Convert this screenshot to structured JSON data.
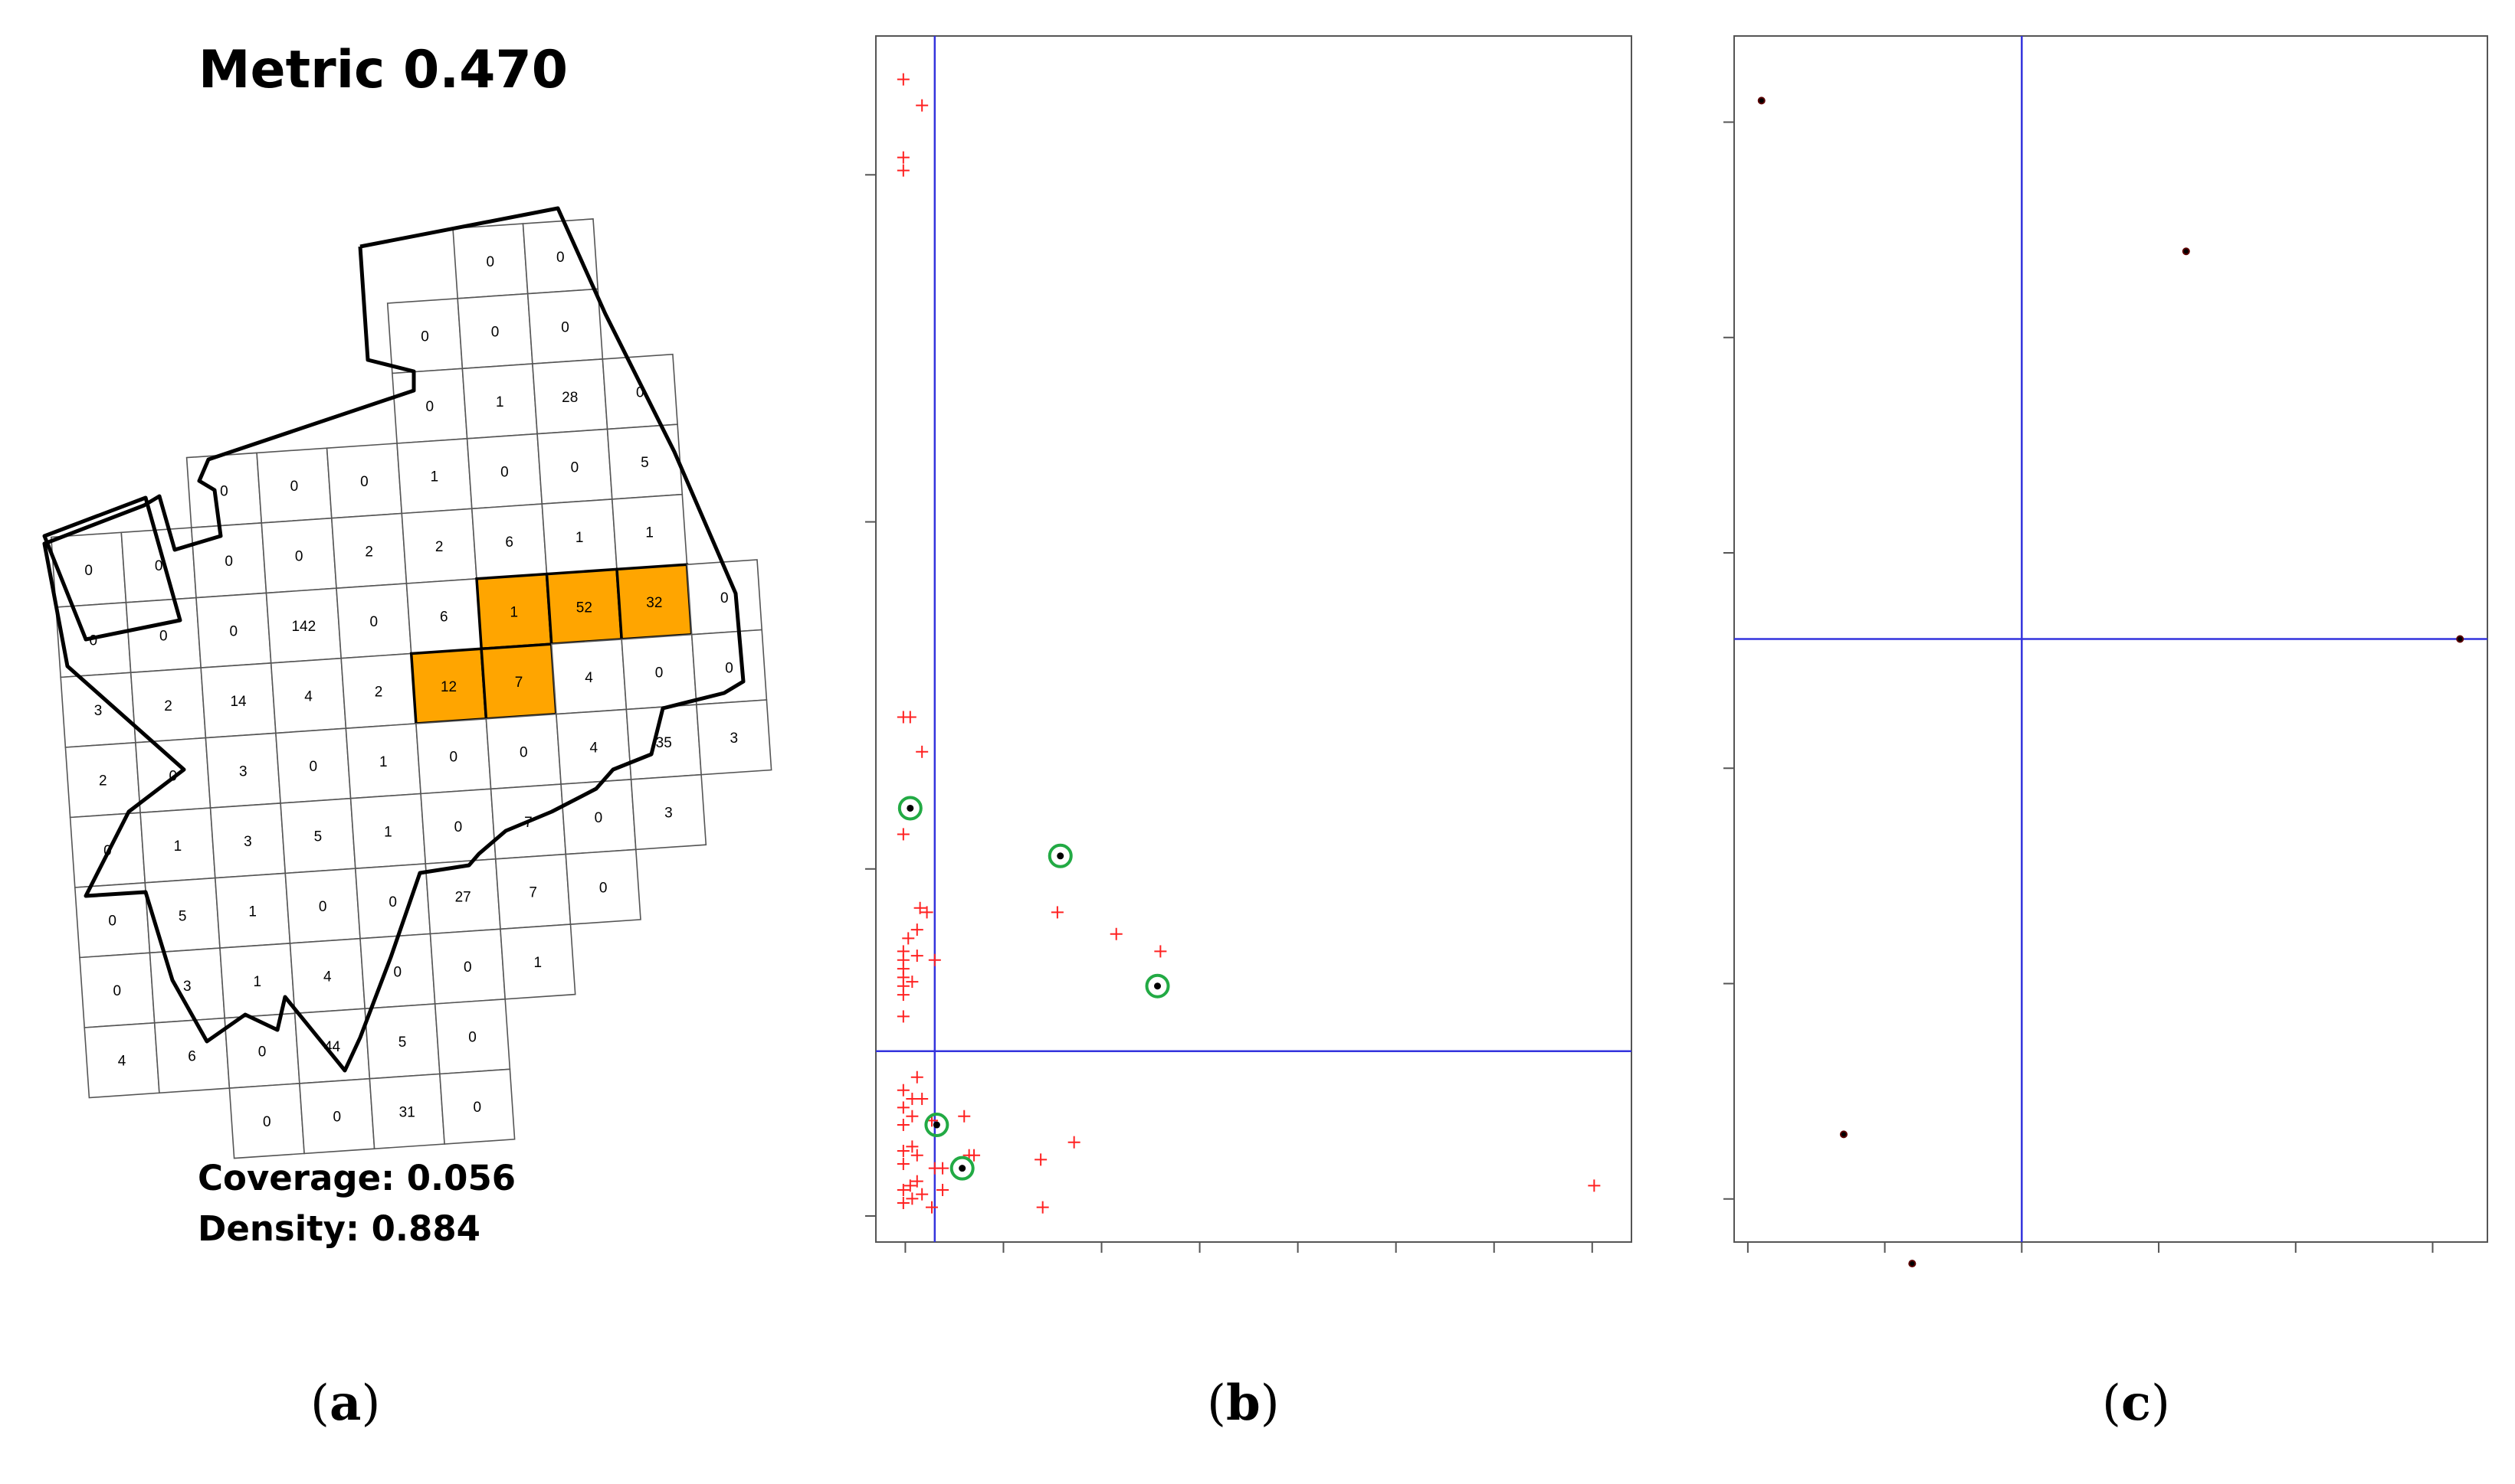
{
  "panel_a": {
    "title": "Metric 0.470",
    "coverage_text": "Coverage: 0.056",
    "density_text": "Density: 0.884",
    "label_open": "(",
    "label_letter": "a",
    "label_close": ")",
    "highlight_color": "#FFA500",
    "grid_rows": [
      {
        "row": 0,
        "start_col": 6,
        "values": [
          "0",
          "0"
        ]
      },
      {
        "row": 1,
        "start_col": 5,
        "values": [
          "0",
          "0",
          "0"
        ]
      },
      {
        "row": 2,
        "start_col": 5,
        "values": [
          "0",
          "1",
          "28",
          "0"
        ]
      },
      {
        "row": 3,
        "start_col": 2,
        "values": [
          "0",
          "0",
          "0",
          "1",
          "0",
          "0",
          "5"
        ]
      },
      {
        "row": 4,
        "start_col": 0,
        "values": [
          "0",
          "0",
          "0",
          "0",
          "2",
          "2",
          "6",
          "1",
          "1"
        ]
      },
      {
        "row": 5,
        "start_col": 0,
        "values": [
          "0",
          "0",
          "0",
          "142",
          "0",
          "6",
          "1",
          "52",
          "32",
          "0"
        ]
      },
      {
        "row": 6,
        "start_col": 0,
        "values": [
          "3",
          "2",
          "14",
          "4",
          "2",
          "12",
          "7",
          "4",
          "0",
          "0"
        ]
      },
      {
        "row": 7,
        "start_col": 0,
        "values": [
          "2",
          "0",
          "3",
          "0",
          "1",
          "0",
          "0",
          "4",
          "35",
          "3"
        ]
      },
      {
        "row": 8,
        "start_col": 0,
        "values": [
          "0",
          "1",
          "3",
          "5",
          "1",
          "0",
          "7",
          "0",
          "3"
        ]
      },
      {
        "row": 9,
        "start_col": 0,
        "values": [
          "0",
          "5",
          "1",
          "0",
          "0",
          "27",
          "7",
          "0"
        ]
      },
      {
        "row": 10,
        "start_col": 0,
        "values": [
          "0",
          "3",
          "1",
          "4",
          "0",
          "0",
          "1"
        ]
      },
      {
        "row": 11,
        "start_col": 0,
        "values": [
          "4",
          "6",
          "0",
          "44",
          "5",
          "0"
        ]
      },
      {
        "row": 12,
        "start_col": 2,
        "values": [
          "0",
          "0",
          "31",
          "0"
        ]
      }
    ],
    "highlighted_cells": [
      [
        5,
        6
      ],
      [
        5,
        7
      ],
      [
        5,
        8
      ],
      [
        6,
        5
      ],
      [
        6,
        6
      ]
    ]
  },
  "panel_b": {
    "label_open": "(",
    "label_letter": "b",
    "label_close": ")"
  },
  "panel_c": {
    "label_open": "(",
    "label_letter": "c",
    "label_close": ")"
  },
  "colors": {
    "reference_line": "#3333DD",
    "points_plus": "#FF2222",
    "highlight_ring": "#22AA44",
    "point_dot": "#000000",
    "axis": "#555555"
  },
  "chart_data": [
    {
      "type": "scatter",
      "panel": "b",
      "title": "",
      "xlabel": "",
      "ylabel": "",
      "xlim": [
        -0.3,
        7.4
      ],
      "ylim": [
        -0.3,
        13.6
      ],
      "grid": false,
      "x_ticks": [
        0,
        1,
        2,
        3,
        4,
        5,
        6,
        7
      ],
      "y_ticks": [
        0,
        4,
        8,
        12
      ],
      "reference_lines": {
        "x": 0.3,
        "y": 1.9
      },
      "series": [
        {
          "marker": "plus",
          "color": "#FF2222",
          "points": [
            [
              -0.02,
              13.1
            ],
            [
              0.17,
              12.8
            ],
            [
              -0.02,
              12.2
            ],
            [
              -0.02,
              12.05
            ],
            [
              -0.02,
              5.75
            ],
            [
              0.05,
              5.75
            ],
            [
              0.17,
              5.35
            ],
            [
              -0.02,
              4.4
            ],
            [
              0.15,
              3.55
            ],
            [
              0.22,
              3.5
            ],
            [
              0.03,
              3.2
            ],
            [
              0.12,
              3.3
            ],
            [
              -0.02,
              3.05
            ],
            [
              -0.02,
              2.95
            ],
            [
              -0.02,
              2.85
            ],
            [
              -0.02,
              2.75
            ],
            [
              -0.02,
              2.65
            ],
            [
              -0.02,
              2.55
            ],
            [
              0.07,
              2.7
            ],
            [
              0.12,
              3.0
            ],
            [
              0.3,
              2.95
            ],
            [
              -0.02,
              2.3
            ],
            [
              0.12,
              1.6
            ],
            [
              -0.02,
              1.45
            ],
            [
              0.07,
              1.35
            ],
            [
              0.17,
              1.35
            ],
            [
              -0.02,
              1.25
            ],
            [
              0.27,
              1.1
            ],
            [
              0.07,
              1.15
            ],
            [
              -0.02,
              1.05
            ],
            [
              -0.02,
              0.75
            ],
            [
              0.07,
              0.8
            ],
            [
              0.12,
              0.7
            ],
            [
              -0.02,
              0.6
            ],
            [
              0.3,
              0.55
            ],
            [
              0.38,
              0.55
            ],
            [
              0.65,
              0.7
            ],
            [
              0.7,
              0.7
            ],
            [
              0.6,
              1.15
            ],
            [
              -0.02,
              0.3
            ],
            [
              0.05,
              0.35
            ],
            [
              0.12,
              0.4
            ],
            [
              -0.02,
              0.15
            ],
            [
              0.07,
              0.2
            ],
            [
              0.17,
              0.25
            ],
            [
              0.38,
              0.3
            ],
            [
              0.27,
              0.1
            ],
            [
              1.38,
              0.65
            ],
            [
              1.72,
              0.85
            ],
            [
              1.4,
              0.1
            ],
            [
              1.55,
              3.5
            ],
            [
              2.15,
              3.25
            ],
            [
              2.6,
              3.05
            ],
            [
              7.02,
              0.35
            ]
          ]
        },
        {
          "marker": "circled-dot",
          "color": "#22AA44",
          "points": [
            [
              0.05,
              4.7
            ],
            [
              1.58,
              4.15
            ],
            [
              2.57,
              2.65
            ],
            [
              0.32,
              1.05
            ],
            [
              0.58,
              0.55
            ]
          ]
        }
      ]
    },
    {
      "type": "scatter",
      "panel": "c",
      "title": "",
      "xlabel": "",
      "ylabel": "",
      "xlim": [
        -0.05,
        2.7
      ],
      "ylim": [
        -0.2,
        5.4
      ],
      "grid": false,
      "x_ticks": [
        0,
        0.5,
        1,
        1.5,
        2,
        2.5
      ],
      "y_ticks": [
        0,
        1,
        2,
        3,
        4,
        5
      ],
      "reference_lines": {
        "x": 1.0,
        "y": 2.6
      },
      "series": [
        {
          "marker": "dot",
          "color": "#000000",
          "points": [
            [
              0.05,
              5.1
            ],
            [
              1.6,
              4.4
            ],
            [
              2.6,
              2.6
            ],
            [
              0.35,
              0.3
            ],
            [
              0.6,
              -0.3
            ]
          ]
        }
      ]
    }
  ]
}
